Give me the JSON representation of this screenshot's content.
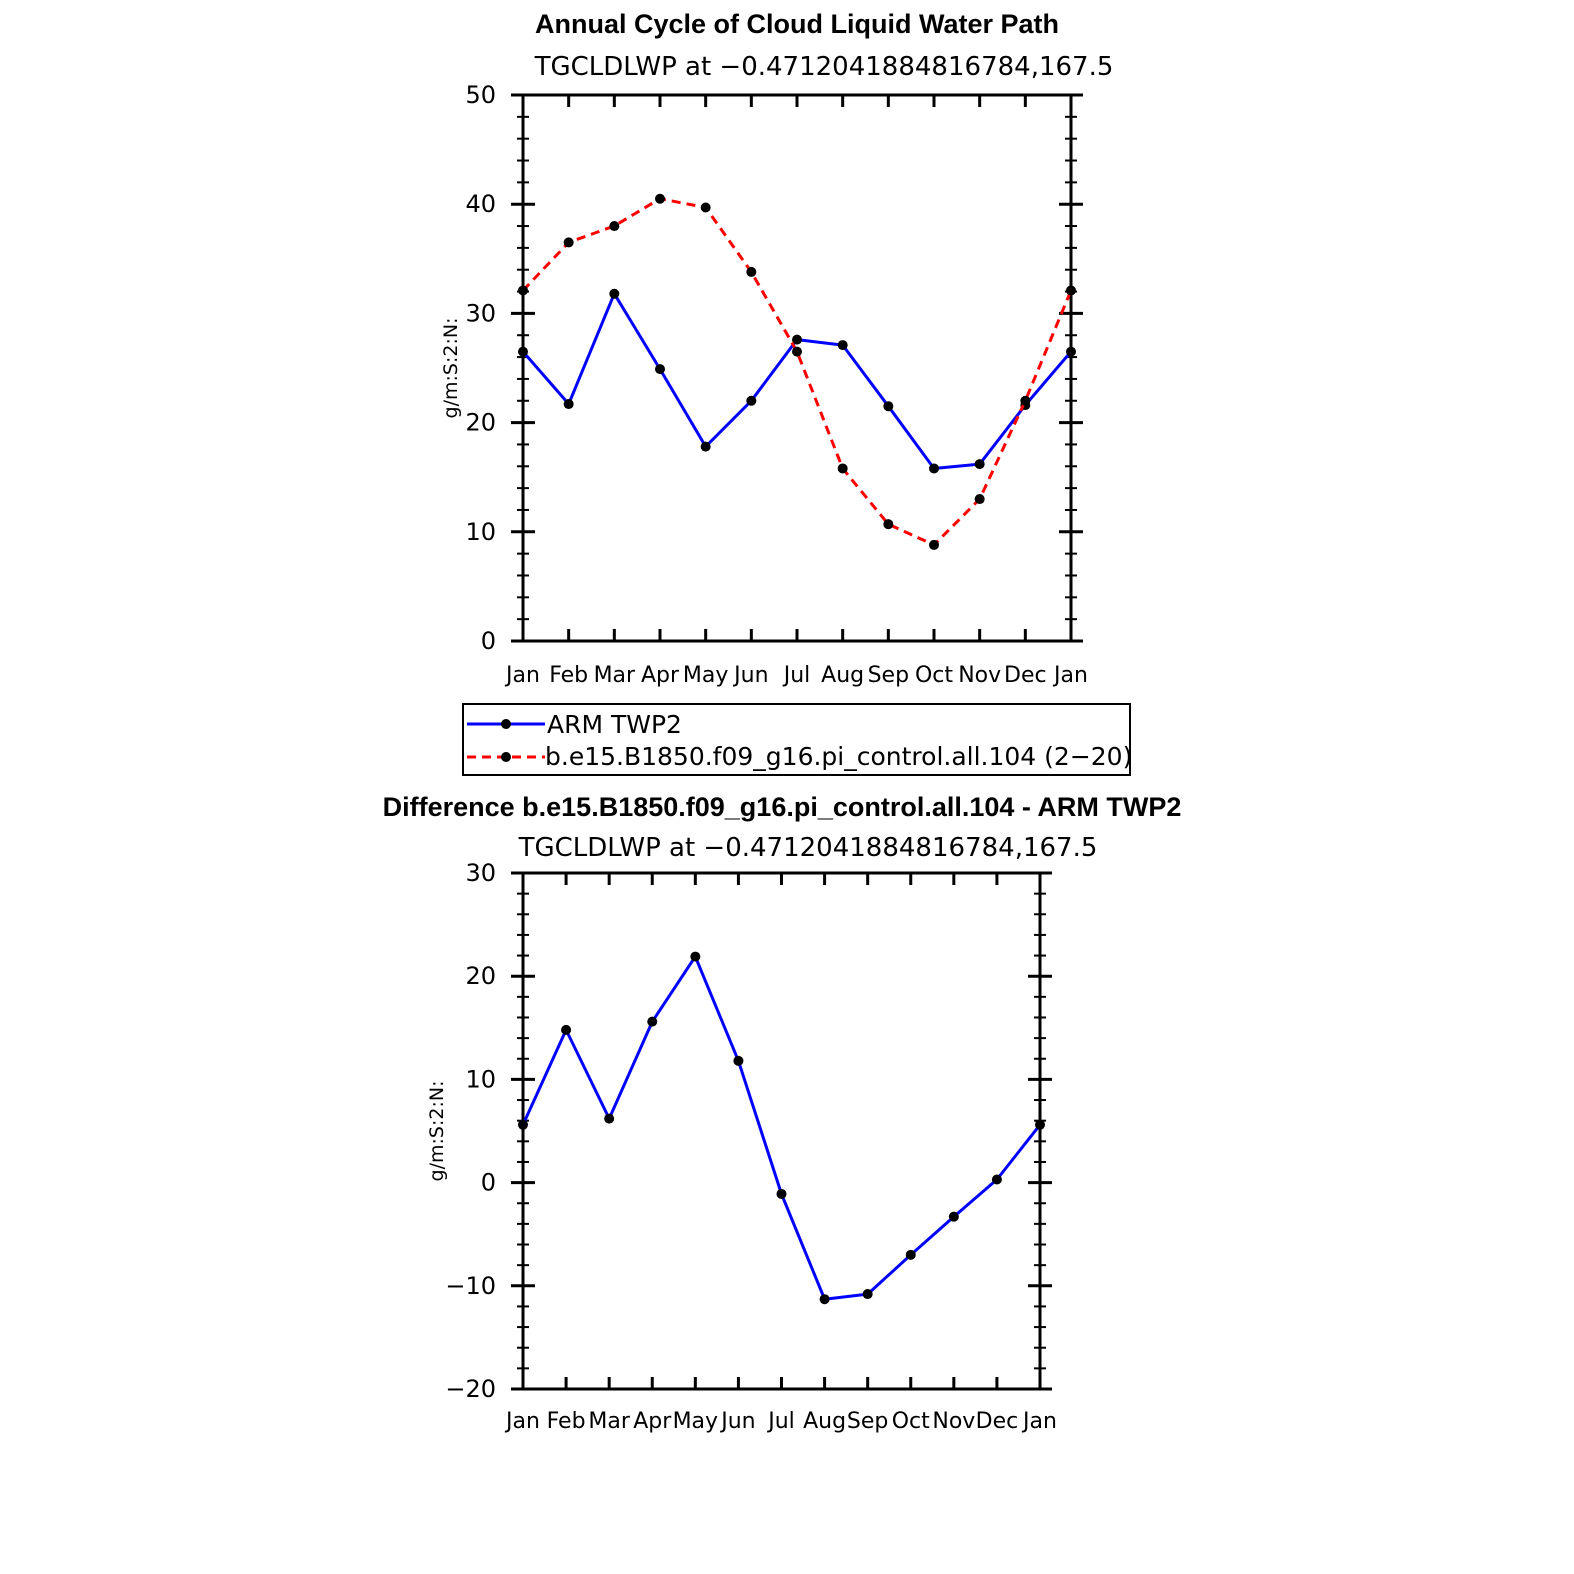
{
  "chart_data": [
    {
      "type": "line",
      "title": "Annual Cycle of Cloud Liquid Water Path",
      "subtitle": "TGCLDLWP  at  −0.4712041884816784,167.5",
      "xlabel": "",
      "ylabel": "g/m:S:2:N:",
      "categories": [
        "Jan",
        "Feb",
        "Mar",
        "Apr",
        "May",
        "Jun",
        "Jul",
        "Aug",
        "Sep",
        "Oct",
        "Nov",
        "Dec",
        "Jan"
      ],
      "ylim": [
        0,
        50
      ],
      "yticks": [
        "0",
        "10",
        "20",
        "30",
        "40",
        "50"
      ],
      "series": [
        {
          "name": "ARM  TWP2",
          "color": "#0000ff",
          "dash": "solid",
          "values": [
            26.5,
            21.7,
            31.8,
            24.9,
            17.8,
            22.0,
            27.6,
            27.1,
            21.5,
            15.8,
            16.2,
            21.6,
            26.5
          ]
        },
        {
          "name": "b.e15.B1850.f09_g16.pi_control.all.104  (2−20)",
          "color": "#ff0000",
          "dash": "dashed",
          "values": [
            32.1,
            36.5,
            38.0,
            40.5,
            39.7,
            33.8,
            26.5,
            15.8,
            10.7,
            8.8,
            13.0,
            22.0,
            32.1
          ]
        }
      ],
      "legend": {
        "position": "below",
        "entries": [
          "ARM  TWP2",
          "b.e15.B1850.f09_g16.pi_control.all.104  (2−20)"
        ]
      }
    },
    {
      "type": "line",
      "title": "Difference b.e15.B1850.f09_g16.pi_control.all.104 - ARM TWP2",
      "subtitle": "TGCLDLWP  at  −0.4712041884816784,167.5",
      "xlabel": "",
      "ylabel": "g/m:S:2:N:",
      "categories": [
        "Jan",
        "Feb",
        "Mar",
        "Apr",
        "May",
        "Jun",
        "Jul",
        "Aug",
        "Sep",
        "Oct",
        "Nov",
        "Dec",
        "Jan"
      ],
      "ylim": [
        -20,
        30
      ],
      "yticks": [
        "−20",
        "−10",
        "0",
        "10",
        "20",
        "30"
      ],
      "series": [
        {
          "name": "Difference",
          "color": "#0000ff",
          "dash": "solid",
          "values": [
            5.6,
            14.8,
            6.2,
            15.6,
            21.9,
            11.8,
            -1.1,
            -11.3,
            -10.8,
            -7.0,
            -3.3,
            0.3,
            5.6
          ]
        }
      ]
    }
  ]
}
